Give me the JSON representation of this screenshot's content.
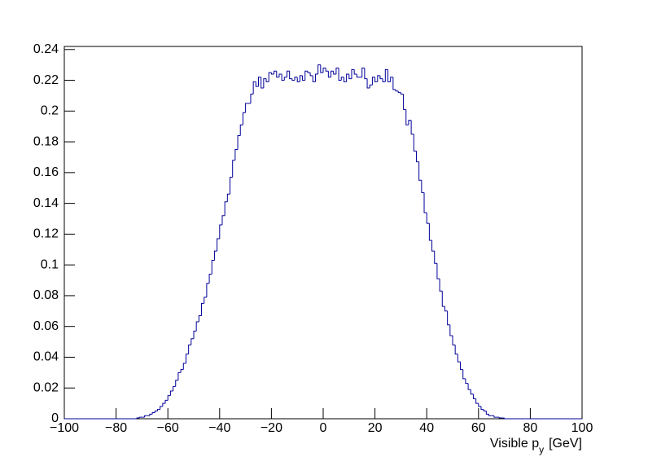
{
  "chart_data": {
    "type": "histogram",
    "x_label_parts": [
      "Visible p",
      "y",
      "[GeV]"
    ],
    "bins": [
      -100,
      -99,
      -98,
      -97,
      -96,
      -95,
      -94,
      -93,
      -92,
      -91,
      -90,
      -89,
      -88,
      -87,
      -86,
      -85,
      -84,
      -83,
      -82,
      -81,
      -80,
      -79,
      -78,
      -77,
      -76,
      -75,
      -74,
      -73,
      -72,
      -71,
      -70,
      -69,
      -68,
      -67,
      -66,
      -65,
      -64,
      -63,
      -62,
      -61,
      -60,
      -59,
      -58,
      -57,
      -56,
      -55,
      -54,
      -53,
      -52,
      -51,
      -50,
      -49,
      -48,
      -47,
      -46,
      -45,
      -44,
      -43,
      -42,
      -41,
      -40,
      -39,
      -38,
      -37,
      -36,
      -35,
      -34,
      -33,
      -32,
      -31,
      -30,
      -29,
      -28,
      -27,
      -26,
      -25,
      -24,
      -23,
      -22,
      -21,
      -20,
      -19,
      -18,
      -17,
      -16,
      -15,
      -14,
      -13,
      -12,
      -11,
      -10,
      -9,
      -8,
      -7,
      -6,
      -5,
      -4,
      -3,
      -2,
      -1,
      0,
      1,
      2,
      3,
      4,
      5,
      6,
      7,
      8,
      9,
      10,
      11,
      12,
      13,
      14,
      15,
      16,
      17,
      18,
      19,
      20,
      21,
      22,
      23,
      24,
      25,
      26,
      27,
      28,
      29,
      30,
      31,
      32,
      33,
      34,
      35,
      36,
      37,
      38,
      39,
      40,
      41,
      42,
      43,
      44,
      45,
      46,
      47,
      48,
      49,
      50,
      51,
      52,
      53,
      54,
      55,
      56,
      57,
      58,
      59,
      60,
      61,
      62,
      63,
      64,
      65,
      66,
      67,
      68,
      69,
      70,
      71,
      72,
      73,
      74,
      75,
      76,
      77,
      78,
      79,
      80,
      81,
      82,
      83,
      84,
      85,
      86,
      87,
      88,
      89,
      90,
      91,
      92,
      93,
      94,
      95,
      96,
      97,
      98,
      99,
      100
    ],
    "values": [
      0,
      0,
      0,
      0,
      0,
      0,
      0,
      0,
      0,
      0,
      0,
      0,
      0,
      0,
      0,
      0,
      0,
      0,
      0,
      0,
      0,
      0,
      0,
      0,
      0,
      0,
      0,
      0,
      0.0005,
      0.001,
      0.001,
      0.002,
      0.002,
      0.003,
      0.004,
      0.005,
      0.006,
      0.008,
      0.01,
      0.012,
      0.015,
      0.018,
      0.021,
      0.025,
      0.03,
      0.032,
      0.036,
      0.042,
      0.048,
      0.052,
      0.057,
      0.063,
      0.067,
      0.075,
      0.079,
      0.088,
      0.094,
      0.103,
      0.109,
      0.117,
      0.126,
      0.132,
      0.141,
      0.146,
      0.157,
      0.168,
      0.175,
      0.184,
      0.191,
      0.199,
      0.205,
      0.205,
      0.211,
      0.219,
      0.216,
      0.222,
      0.215,
      0.221,
      0.219,
      0.225,
      0.224,
      0.226,
      0.222,
      0.224,
      0.22,
      0.222,
      0.226,
      0.221,
      0.22,
      0.222,
      0.219,
      0.223,
      0.22,
      0.226,
      0.225,
      0.223,
      0.219,
      0.224,
      0.23,
      0.225,
      0.228,
      0.226,
      0.222,
      0.226,
      0.224,
      0.228,
      0.22,
      0.222,
      0.219,
      0.224,
      0.221,
      0.227,
      0.224,
      0.222,
      0.222,
      0.228,
      0.221,
      0.215,
      0.217,
      0.222,
      0.219,
      0.223,
      0.221,
      0.219,
      0.227,
      0.219,
      0.222,
      0.214,
      0.213,
      0.212,
      0.211,
      0.201,
      0.191,
      0.194,
      0.185,
      0.174,
      0.167,
      0.155,
      0.147,
      0.134,
      0.127,
      0.116,
      0.109,
      0.101,
      0.091,
      0.083,
      0.073,
      0.07,
      0.061,
      0.054,
      0.048,
      0.042,
      0.037,
      0.032,
      0.026,
      0.023,
      0.019,
      0.016,
      0.013,
      0.01,
      0.008,
      0.006,
      0.005,
      0.003,
      0.002,
      0.002,
      0.001,
      0.001,
      0.0005,
      0.0005,
      0,
      0,
      0,
      0,
      0,
      0,
      0,
      0,
      0,
      0,
      0,
      0,
      0,
      0,
      0,
      0,
      0,
      0,
      0,
      0,
      0,
      0,
      0,
      0,
      0,
      0,
      0,
      0,
      0,
      0
    ],
    "color": "#000099",
    "xlim": [
      -100,
      100
    ],
    "xticks": [
      {
        "value": -100,
        "label": "−100"
      },
      {
        "value": -80,
        "label": "−80"
      },
      {
        "value": -60,
        "label": "−60"
      },
      {
        "value": -40,
        "label": "−40"
      },
      {
        "value": -20,
        "label": "−20"
      },
      0,
      20,
      40,
      60,
      80,
      100
    ],
    "ylim": [
      0,
      0.242
    ],
    "yticks": [
      0,
      0.02,
      0.04,
      0.06,
      0.08,
      0.1,
      0.12,
      0.14,
      0.16,
      0.18,
      0.2,
      0.22,
      0.24
    ]
  }
}
